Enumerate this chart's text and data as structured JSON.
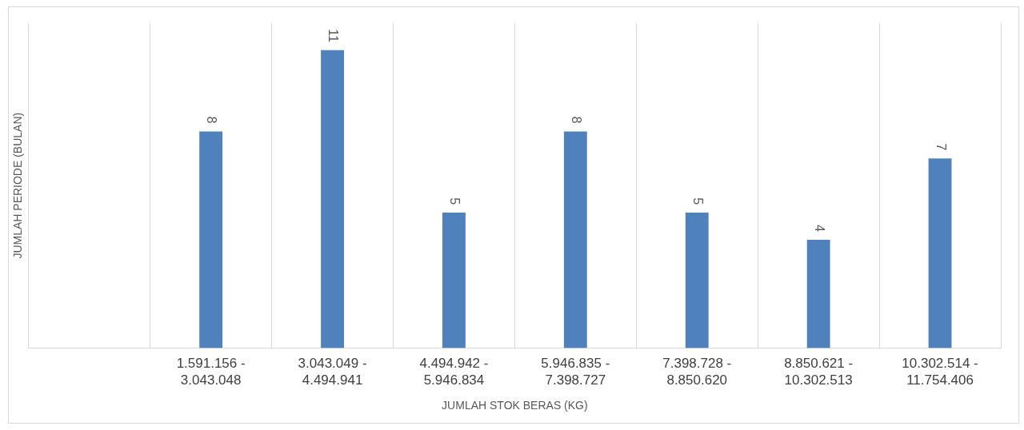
{
  "chart_data": {
    "type": "bar",
    "xlabel": "JUMLAH STOK BERAS (KG)",
    "ylabel": "JUMLAH PERIODE (BULAN)",
    "categories": [
      null,
      "1.591.156 - 3.043.048",
      "3.043.049 - 4.494.941",
      "4.494.942 - 5.946.834",
      "5.946.835 - 7.398.727",
      "7.398.728 - 8.850.620",
      "8.850.621 - 10.302.513",
      "10.302.514 - 11.754.406"
    ],
    "values": [
      null,
      8,
      11,
      5,
      8,
      5,
      4,
      7
    ],
    "color": "#4f81bd",
    "ylim": [
      0,
      12
    ],
    "grid": "x",
    "data_labels": true,
    "legend": false,
    "tick_labels": "x"
  }
}
